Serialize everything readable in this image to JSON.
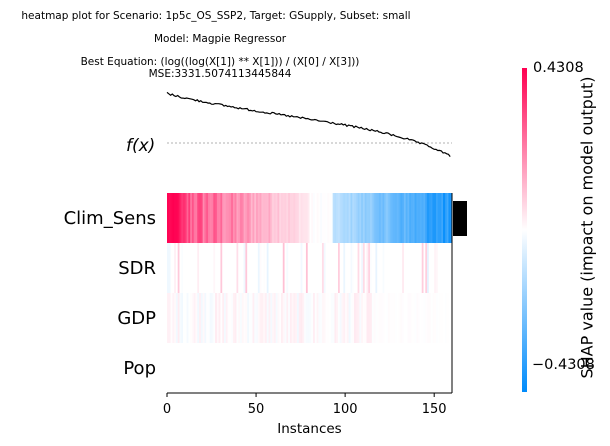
{
  "title_lines": [
    "heatmap plot for Scenario: 1p5c_OS_SSP2, Target: GSupply, Subset: small",
    "Model: Magpie Regressor",
    "Best Equation: (log((log(X[1]) ** X[1])) / (X[0] / X[3]))",
    "MSE:3331.5074113445844"
  ],
  "fx_label": "f(x)",
  "chart_data": {
    "type": "heatmap",
    "xlabel": "Instances",
    "x_ticks": [
      0,
      50,
      100,
      150
    ],
    "n_instances": 160,
    "features": [
      "Clim_Sens",
      "SDR",
      "GDP",
      "Pop"
    ],
    "feature_importance_bar": "Clim_Sens",
    "colorbar": {
      "label": "SHAP value (impact on model output)",
      "max": 0.4308,
      "min": -0.4308,
      "max_label": "0.4308",
      "min_label": "−0.4308",
      "color_high": "#ff0051",
      "color_low": "#008bfb"
    },
    "fx_curve": "decreasing from left to right across sorted instances"
  }
}
